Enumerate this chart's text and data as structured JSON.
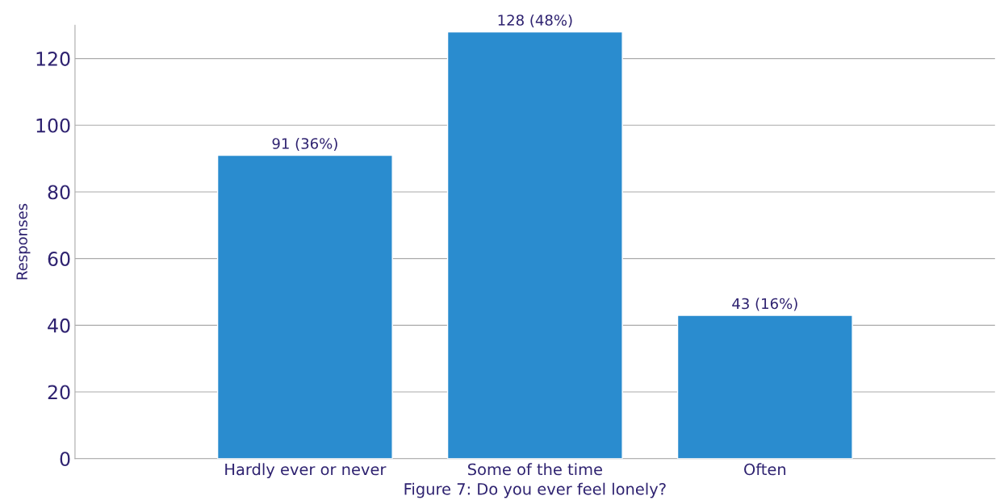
{
  "chart_data": {
    "type": "bar",
    "xlabel": "Figure 7: Do you ever feel lonely?",
    "ylabel": "Responses",
    "categories": [
      "Hardly ever or never",
      "Some of the time",
      "Often"
    ],
    "values": [
      91,
      128,
      43
    ],
    "color": "#2a8ccf",
    "value_labels": [
      "91 (36%)",
      "128 (48%)",
      "43 (16%)"
    ],
    "ylim": [
      0,
      130
    ],
    "yticks": [
      0,
      20,
      40,
      60,
      80,
      100,
      120
    ],
    "grid": "y"
  }
}
